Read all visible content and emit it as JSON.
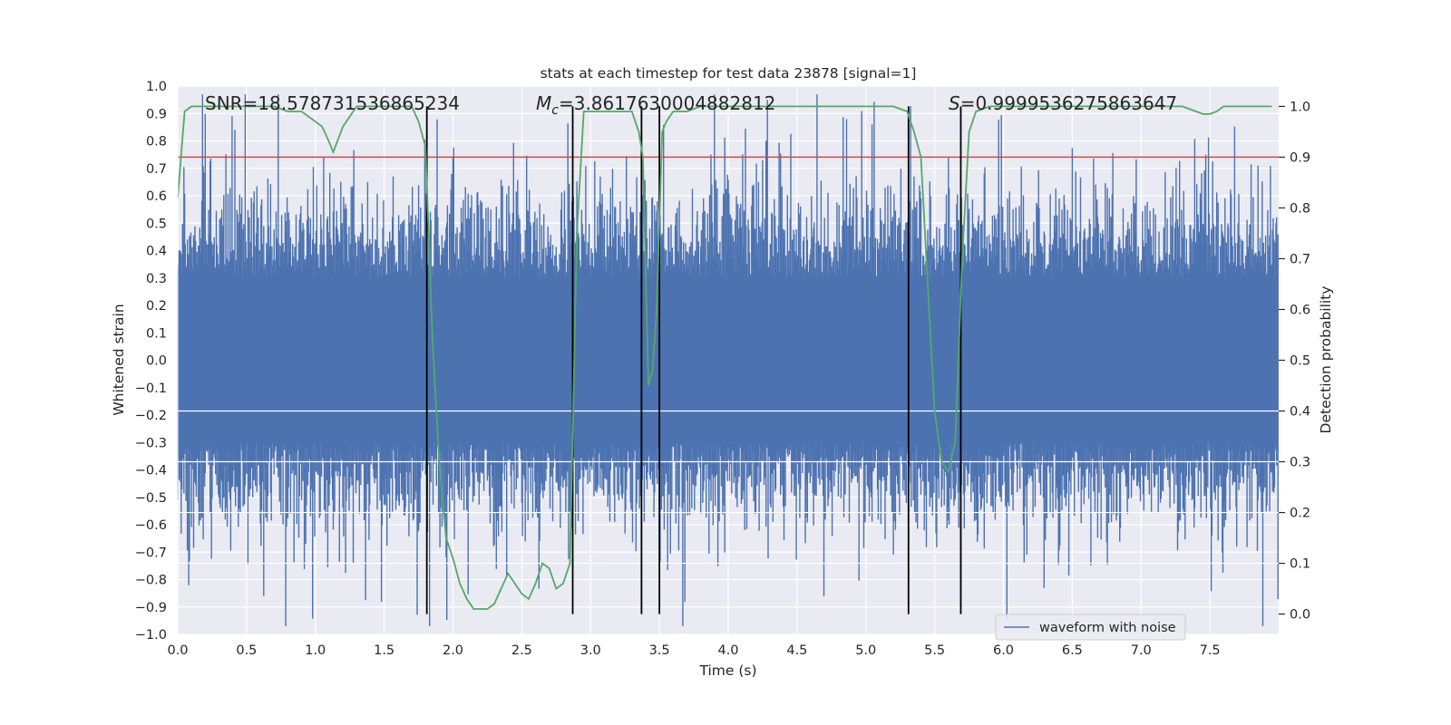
{
  "chart_data": {
    "type": "line",
    "title": "stats at each timestep for test data 23878 [signal=1]",
    "xlabel": "Time (s)",
    "ylabel_left": "Whitened strain",
    "ylabel_right": "Detection probability",
    "xlim": [
      0.0,
      8.0
    ],
    "ylim_left": [
      -1.0,
      1.0
    ],
    "ylim_right": [
      -0.04,
      1.04
    ],
    "x_ticks": [
      0.0,
      0.5,
      1.0,
      1.5,
      2.0,
      2.5,
      3.0,
      3.5,
      4.0,
      4.5,
      5.0,
      5.5,
      6.0,
      6.5,
      7.0,
      7.5
    ],
    "x_tick_labels": [
      "0.0",
      "0.5",
      "1.0",
      "1.5",
      "2.0",
      "2.5",
      "3.0",
      "3.5",
      "4.0",
      "4.5",
      "5.0",
      "5.5",
      "6.0",
      "6.5",
      "7.0",
      "7.5"
    ],
    "y_ticks_left": [
      1.0,
      0.9,
      0.8,
      0.7,
      0.6,
      0.5,
      0.4,
      0.3,
      0.2,
      0.1,
      0.0,
      -0.1,
      -0.2,
      -0.3,
      -0.4,
      -0.5,
      -0.6,
      -0.7,
      -0.8,
      -0.9,
      -1.0
    ],
    "y_tick_labels_left": [
      "1.0",
      "0.9",
      "0.8",
      "0.7",
      "0.6",
      "0.5",
      "0.4",
      "0.3",
      "0.2",
      "0.1",
      "0.0",
      "−0.1",
      "−0.2",
      "−0.3",
      "−0.4",
      "−0.5",
      "−0.6",
      "−0.7",
      "−0.8",
      "−0.9",
      "−1.0"
    ],
    "y_ticks_right": [
      1.0,
      0.9,
      0.8,
      0.7,
      0.6,
      0.5,
      0.4,
      0.3,
      0.2,
      0.1,
      0.0
    ],
    "y_tick_labels_right": [
      "1.0",
      "0.9",
      "0.8",
      "0.7",
      "0.6",
      "0.5",
      "0.4",
      "0.3",
      "0.2",
      "0.1",
      "0.0"
    ],
    "grid": true,
    "annotations": {
      "snr": "SNR=18.578731536865234",
      "mc_symbol": "M",
      "mc_subscript": "c",
      "mc_value": "=3.8617630004882812",
      "s_symbol": "S",
      "s_value": "=0.9999536275863647"
    },
    "threshold": {
      "value": 0.9,
      "axis": "right",
      "color": "#c44e52"
    },
    "vertical_lines_x": [
      1.81,
      2.87,
      3.37,
      3.5,
      5.31,
      5.69
    ],
    "legend": {
      "label": "waveform with noise",
      "position": "lower-right"
    },
    "series": [
      {
        "name": "waveform with noise",
        "axis": "left",
        "color": "#4c72b0",
        "kind": "noise",
        "seed": 23878,
        "samples": 1600,
        "typical_amplitude": 0.42,
        "max_amplitude": 0.97
      },
      {
        "name": "detection probability",
        "axis": "right",
        "color": "#55a868",
        "x": [
          0.0,
          0.05,
          0.1,
          0.2,
          0.3,
          0.5,
          0.7,
          0.8,
          0.9,
          0.95,
          1.0,
          1.05,
          1.1,
          1.13,
          1.2,
          1.3,
          1.5,
          1.6,
          1.7,
          1.75,
          1.8,
          1.85,
          1.9,
          1.95,
          2.0,
          2.05,
          2.1,
          2.15,
          2.2,
          2.25,
          2.3,
          2.4,
          2.45,
          2.5,
          2.55,
          2.6,
          2.65,
          2.7,
          2.75,
          2.8,
          2.85,
          2.9,
          2.95,
          3.0,
          3.1,
          3.2,
          3.25,
          3.3,
          3.35,
          3.38,
          3.42,
          3.45,
          3.48,
          3.52,
          3.55,
          3.6,
          3.7,
          3.8,
          4.0,
          4.5,
          5.0,
          5.2,
          5.3,
          5.35,
          5.4,
          5.45,
          5.5,
          5.55,
          5.6,
          5.65,
          5.7,
          5.75,
          5.8,
          5.9,
          6.0,
          6.5,
          7.0,
          7.2,
          7.3,
          7.4,
          7.45,
          7.5,
          7.55,
          7.6,
          7.8,
          7.95
        ],
        "values": [
          0.82,
          0.99,
          1.0,
          1.0,
          1.0,
          1.0,
          1.0,
          0.99,
          0.99,
          0.98,
          0.97,
          0.96,
          0.93,
          0.91,
          0.96,
          1.0,
          1.0,
          1.0,
          1.0,
          0.97,
          0.92,
          0.55,
          0.3,
          0.15,
          0.11,
          0.06,
          0.03,
          0.01,
          0.01,
          0.01,
          0.02,
          0.08,
          0.06,
          0.04,
          0.03,
          0.06,
          0.1,
          0.09,
          0.05,
          0.06,
          0.1,
          0.75,
          0.99,
          0.99,
          0.99,
          0.99,
          0.99,
          0.99,
          0.95,
          0.9,
          0.45,
          0.48,
          0.6,
          0.95,
          0.97,
          0.99,
          0.99,
          1.0,
          1.0,
          1.0,
          1.0,
          1.0,
          0.99,
          0.95,
          0.9,
          0.65,
          0.4,
          0.3,
          0.28,
          0.34,
          0.7,
          0.95,
          0.99,
          1.0,
          1.0,
          1.0,
          1.0,
          1.0,
          1.0,
          0.99,
          0.985,
          0.985,
          0.99,
          1.0,
          1.0,
          1.0
        ]
      }
    ]
  }
}
